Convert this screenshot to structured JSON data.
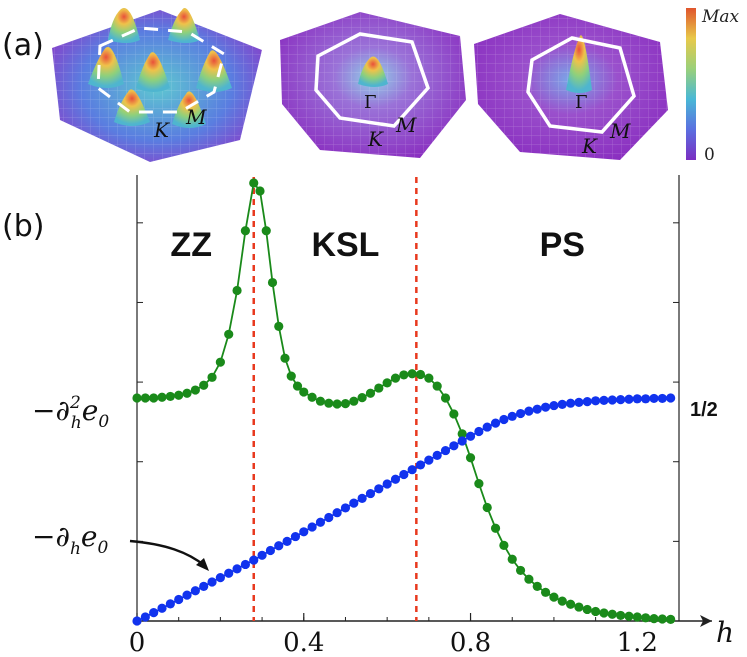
{
  "panels": {
    "a_label": "(a)",
    "b_label": "(b)"
  },
  "surfaces": [
    {
      "k_label": "K",
      "m_label": "M",
      "center_label": ""
    },
    {
      "k_label": "K",
      "m_label": "M",
      "center_label": "Γ"
    },
    {
      "k_label": "K",
      "m_label": "M",
      "center_label": "Γ"
    }
  ],
  "colorbar": {
    "max_label": "Max",
    "min_label": "0",
    "colors": [
      "#7a2ec2",
      "#5b6fe0",
      "#49b8d6",
      "#9ad07a",
      "#e8c94a",
      "#e0552c"
    ]
  },
  "chart_data": {
    "type": "line",
    "xlabel": "h",
    "xlim": [
      0,
      1.3
    ],
    "ylim": [
      0,
      1.1
    ],
    "xticks": [
      0,
      0.4,
      0.8,
      1.2
    ],
    "xtick_labels": [
      "0",
      "0.4",
      "0.8",
      "1.2"
    ],
    "phases": [
      {
        "label": "ZZ",
        "x": 0.13
      },
      {
        "label": "KSL",
        "x": 0.5
      },
      {
        "label": "PS",
        "x": 1.02
      }
    ],
    "transitions": [
      0.28,
      0.67
    ],
    "series": [
      {
        "name": "-∂²_h e₀",
        "label_base": "−∂",
        "label_sup": "2",
        "label_sub": "h",
        "label_tail": "e",
        "label_tail_sub": "0",
        "color": "#1a8a1a",
        "x": [
          0.0,
          0.02,
          0.04,
          0.06,
          0.08,
          0.1,
          0.12,
          0.14,
          0.16,
          0.18,
          0.2,
          0.22,
          0.24,
          0.26,
          0.28,
          0.295,
          0.31,
          0.325,
          0.34,
          0.355,
          0.37,
          0.385,
          0.4,
          0.42,
          0.44,
          0.46,
          0.48,
          0.5,
          0.52,
          0.54,
          0.56,
          0.58,
          0.6,
          0.62,
          0.64,
          0.66,
          0.68,
          0.7,
          0.72,
          0.74,
          0.76,
          0.78,
          0.8,
          0.82,
          0.84,
          0.86,
          0.88,
          0.9,
          0.92,
          0.94,
          0.96,
          0.98,
          1.0,
          1.02,
          1.04,
          1.06,
          1.08,
          1.1,
          1.12,
          1.14,
          1.16,
          1.18,
          1.2,
          1.22,
          1.24,
          1.26,
          1.28
        ],
        "y": [
          0.56,
          0.56,
          0.56,
          0.562,
          0.564,
          0.567,
          0.572,
          0.58,
          0.592,
          0.612,
          0.65,
          0.72,
          0.83,
          0.98,
          1.1,
          1.08,
          0.98,
          0.85,
          0.74,
          0.66,
          0.615,
          0.59,
          0.575,
          0.562,
          0.552,
          0.547,
          0.545,
          0.546,
          0.552,
          0.561,
          0.572,
          0.585,
          0.598,
          0.61,
          0.618,
          0.621,
          0.619,
          0.61,
          0.59,
          0.56,
          0.52,
          0.47,
          0.41,
          0.345,
          0.285,
          0.233,
          0.19,
          0.155,
          0.127,
          0.105,
          0.087,
          0.072,
          0.06,
          0.05,
          0.042,
          0.035,
          0.029,
          0.024,
          0.02,
          0.017,
          0.014,
          0.012,
          0.01,
          0.008,
          0.006,
          0.005,
          0.004
        ]
      },
      {
        "name": "-∂_h e₀",
        "label_base": "−∂",
        "label_sub": "h",
        "label_tail": "e",
        "label_tail_sub": "0",
        "end_label": "1/2",
        "color": "#1133ee",
        "x": [
          0.0,
          0.02,
          0.04,
          0.06,
          0.08,
          0.1,
          0.12,
          0.14,
          0.16,
          0.18,
          0.2,
          0.22,
          0.24,
          0.26,
          0.28,
          0.3,
          0.32,
          0.34,
          0.36,
          0.38,
          0.4,
          0.42,
          0.44,
          0.46,
          0.48,
          0.5,
          0.52,
          0.54,
          0.56,
          0.58,
          0.6,
          0.62,
          0.64,
          0.66,
          0.68,
          0.7,
          0.72,
          0.74,
          0.76,
          0.78,
          0.8,
          0.82,
          0.84,
          0.86,
          0.88,
          0.9,
          0.92,
          0.94,
          0.96,
          0.98,
          1.0,
          1.02,
          1.04,
          1.06,
          1.08,
          1.1,
          1.12,
          1.14,
          1.16,
          1.18,
          1.2,
          1.22,
          1.24,
          1.26,
          1.28
        ],
        "y": [
          0.0,
          0.01,
          0.021,
          0.032,
          0.043,
          0.054,
          0.065,
          0.076,
          0.087,
          0.098,
          0.109,
          0.12,
          0.131,
          0.142,
          0.153,
          0.165,
          0.177,
          0.189,
          0.2,
          0.212,
          0.224,
          0.236,
          0.248,
          0.26,
          0.272,
          0.284,
          0.296,
          0.308,
          0.32,
          0.332,
          0.344,
          0.356,
          0.368,
          0.38,
          0.392,
          0.404,
          0.416,
          0.428,
          0.44,
          0.452,
          0.464,
          0.476,
          0.487,
          0.497,
          0.506,
          0.514,
          0.521,
          0.527,
          0.532,
          0.537,
          0.541,
          0.544,
          0.547,
          0.549,
          0.551,
          0.553,
          0.554,
          0.555,
          0.556,
          0.557,
          0.558,
          0.558,
          0.559,
          0.559,
          0.56
        ]
      }
    ]
  }
}
